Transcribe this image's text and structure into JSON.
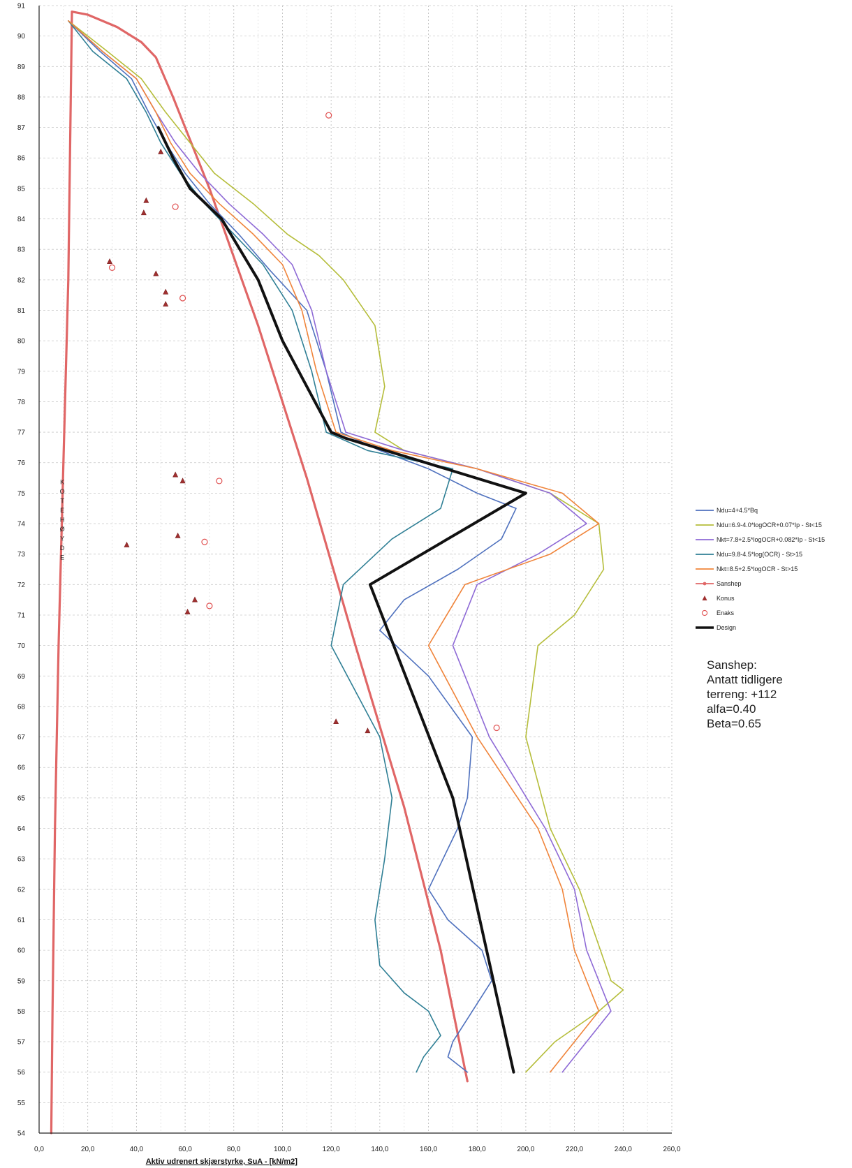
{
  "chart_data": {
    "type": "line",
    "xlabel": "Aktiv udrenert skjærstyrke, SuA  -  [kN/m2]",
    "ylabel": "KOTEHØYDE",
    "xlim": [
      0,
      260
    ],
    "ylim": [
      54,
      91
    ],
    "xticks": [
      "0,0",
      "20,0",
      "40,0",
      "60,0",
      "80,0",
      "100,0",
      "120,0",
      "140,0",
      "160,0",
      "180,0",
      "200,0",
      "220,0",
      "240,0",
      "260,0"
    ],
    "yticks": [
      "54",
      "55",
      "56",
      "57",
      "58",
      "59",
      "60",
      "61",
      "62",
      "63",
      "64",
      "65",
      "66",
      "67",
      "68",
      "69",
      "70",
      "71",
      "72",
      "73",
      "74",
      "75",
      "76",
      "77",
      "78",
      "79",
      "80",
      "81",
      "82",
      "83",
      "84",
      "85",
      "86",
      "87",
      "88",
      "89",
      "90",
      "91"
    ],
    "grid": true,
    "legend_position": "right",
    "series": [
      {
        "name": "Ndu=4+4.5*Bq",
        "color": "#4f71be",
        "kind": "line",
        "x": [
          12,
          25,
          38,
          45,
          52,
          60,
          70,
          82,
          95,
          110,
          118,
          124,
          140,
          160,
          180,
          196,
          190,
          172,
          150,
          140,
          160,
          178,
          176,
          172,
          160,
          168,
          182,
          186,
          178,
          170,
          168,
          176
        ],
        "y": [
          90.5,
          89.5,
          88.6,
          87.5,
          86.5,
          85.5,
          84.5,
          83.5,
          82.3,
          81,
          79,
          77,
          76.4,
          75.8,
          75,
          74.5,
          73.5,
          72.5,
          71.5,
          70.5,
          69,
          67,
          65,
          64,
          62,
          61,
          60,
          59,
          58,
          57,
          56.5,
          56
        ]
      },
      {
        "name": "Ndu=6.9-4.0*logOCR+0.07*Ip  -  St<15",
        "color": "#b5bd3a",
        "kind": "line",
        "x": [
          12,
          28,
          42,
          52,
          62,
          72,
          88,
          102,
          115,
          125,
          138,
          142,
          138,
          150,
          180,
          210,
          230,
          232,
          220,
          205,
          200,
          210,
          222,
          235,
          240,
          230,
          212,
          200
        ],
        "y": [
          90.5,
          89.5,
          88.6,
          87.5,
          86.5,
          85.5,
          84.5,
          83.5,
          82.8,
          82,
          80.5,
          78.5,
          77,
          76.4,
          75.8,
          75,
          74,
          72.5,
          71,
          70,
          67,
          64,
          62,
          59,
          58.7,
          58,
          57,
          56
        ]
      },
      {
        "name": "Nkt=7.8+2.5*logOCR+0.082*Ip  -  St<15",
        "color": "#8e6ad6",
        "kind": "line",
        "x": [
          12,
          26,
          40,
          48,
          56,
          66,
          78,
          92,
          104,
          112,
          118,
          126,
          150,
          180,
          210,
          225,
          205,
          180,
          170,
          185,
          208,
          220,
          225,
          230,
          235,
          225,
          215
        ],
        "y": [
          90.5,
          89.5,
          88.6,
          87.5,
          86.5,
          85.5,
          84.5,
          83.5,
          82.5,
          81,
          79,
          77,
          76.4,
          75.8,
          75,
          74,
          73,
          72,
          70,
          67,
          64,
          62,
          60,
          59,
          58,
          57,
          56
        ]
      },
      {
        "name": "Ndu=9.8-4.5*log(OCR)  -  St>15",
        "color": "#2f7f95",
        "kind": "line",
        "x": [
          12,
          22,
          36,
          44,
          50,
          58,
          68,
          80,
          92,
          104,
          112,
          118,
          135,
          170,
          165,
          145,
          125,
          120,
          130,
          140,
          145,
          142,
          138,
          140,
          150,
          160,
          165,
          158,
          155
        ],
        "y": [
          90.5,
          89.5,
          88.6,
          87.5,
          86.5,
          85.5,
          84.5,
          83.5,
          82.5,
          81,
          79,
          77,
          76.4,
          75.8,
          74.5,
          73.5,
          72,
          70,
          68.5,
          67,
          65,
          63,
          61,
          59.5,
          58.6,
          58,
          57.2,
          56.5,
          56
        ]
      },
      {
        "name": "Nkt=8.5+2.5*logOCR  -  St>15",
        "color": "#f0843a",
        "kind": "line",
        "x": [
          12,
          26,
          40,
          48,
          54,
          62,
          74,
          88,
          100,
          108,
          114,
          122,
          145,
          180,
          215,
          230,
          210,
          175,
          160,
          180,
          205,
          215,
          220,
          225,
          230,
          220,
          210
        ],
        "y": [
          90.5,
          89.5,
          88.6,
          87.5,
          86.5,
          85.5,
          84.5,
          83.5,
          82.5,
          81,
          79,
          77,
          76.4,
          75.8,
          75,
          74,
          73,
          72,
          70,
          67,
          64,
          62,
          60,
          59,
          58,
          57,
          56
        ]
      },
      {
        "name": "Sanshep",
        "color": "#e06666",
        "kind": "line",
        "x": [
          5,
          5.5,
          6.5,
          8,
          10,
          12,
          13.5,
          20,
          32,
          42,
          48,
          55,
          70,
          90,
          110,
          130,
          150,
          165,
          176
        ],
        "y": [
          54,
          58,
          64,
          70,
          76,
          82,
          90.8,
          90.7,
          90.3,
          89.8,
          89.3,
          88,
          85,
          80.5,
          75.5,
          70,
          64.7,
          60,
          55.7
        ]
      },
      {
        "name": "Konus",
        "color": "#a03030",
        "kind": "triangle",
        "x": [
          29,
          36,
          43,
          44,
          48,
          50,
          52,
          52,
          56,
          57,
          59,
          61,
          64,
          122,
          135
        ],
        "y": [
          82.6,
          73.3,
          84.2,
          84.6,
          82.2,
          86.2,
          81.6,
          81.2,
          75.6,
          73.6,
          75.4,
          71.1,
          71.5,
          67.5,
          67.2
        ]
      },
      {
        "name": "Enaks",
        "color": "#e05050",
        "kind": "circle",
        "x": [
          30,
          56,
          59,
          68,
          74,
          70,
          119,
          188
        ],
        "y": [
          82.4,
          84.4,
          81.4,
          73.4,
          75.4,
          71.3,
          87.4,
          67.3
        ]
      },
      {
        "name": "Design",
        "color": "#111111",
        "kind": "line",
        "x": [
          49,
          55,
          62,
          75,
          90,
          100,
          110,
          120,
          126,
          200,
          136,
          170,
          195
        ],
        "y": [
          87,
          86,
          85,
          84,
          82,
          80,
          78.5,
          77,
          76.8,
          75,
          72,
          65,
          56
        ]
      }
    ],
    "annotation": [
      "Sanshep:",
      "Antatt tidligere",
      "terreng: +112",
      "alfa=0.40",
      "Beta=0.65"
    ]
  }
}
